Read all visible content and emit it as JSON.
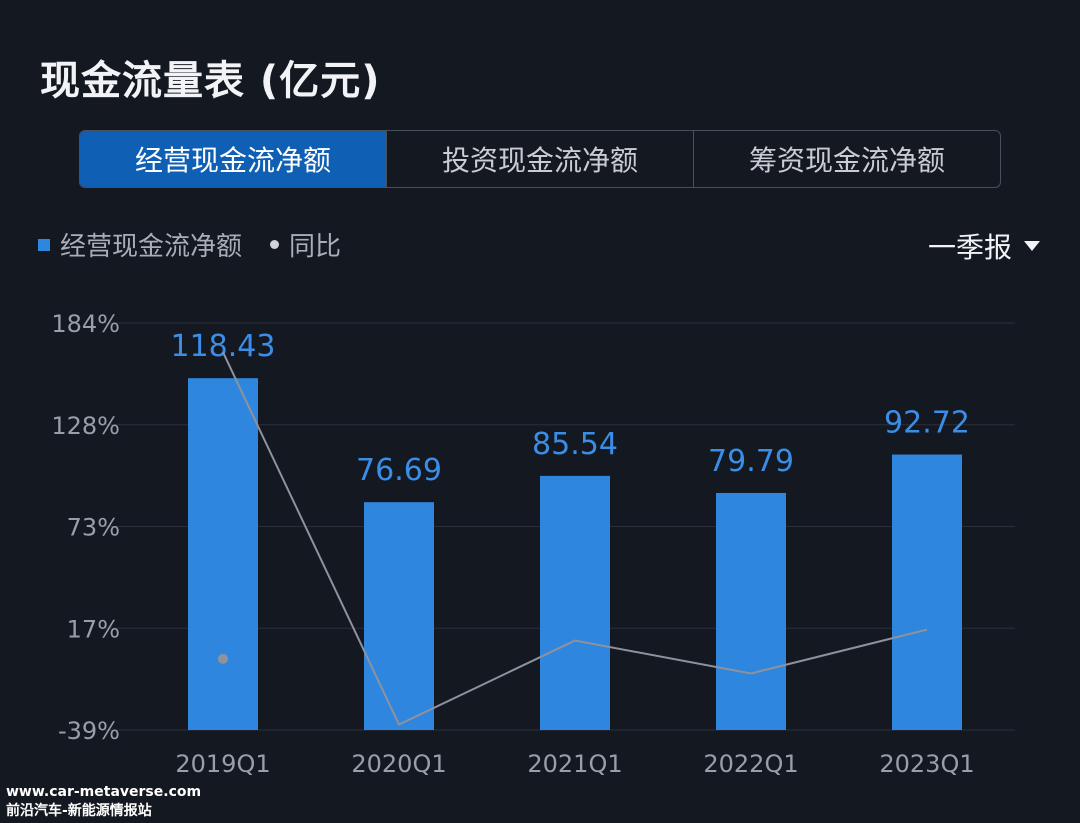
{
  "title": "现金流量表 (亿元)",
  "tabs": [
    {
      "label": "经营现金流净额",
      "active": true
    },
    {
      "label": "投资现金流净额",
      "active": false
    },
    {
      "label": "筹资现金流净额",
      "active": false
    }
  ],
  "legend": {
    "bar_label": "经营现金流净额",
    "line_label": "同比"
  },
  "period": {
    "label": "一季报"
  },
  "colors": {
    "bar": "#2f86de",
    "bar_label": "#3a8ee6",
    "line": "#8e929c",
    "grid": "#2a2f3b",
    "tick": "#9a9ea8"
  },
  "chart_data": {
    "type": "bar",
    "categories": [
      "2019Q1",
      "2020Q1",
      "2021Q1",
      "2022Q1",
      "2023Q1"
    ],
    "series": [
      {
        "name": "经营现金流净额",
        "type": "bar",
        "axis": "left",
        "values": [
          118.43,
          76.69,
          85.54,
          79.79,
          92.72
        ],
        "labels": [
          "118.43",
          "76.69",
          "85.54",
          "79.79",
          "92.72"
        ]
      },
      {
        "name": "同比",
        "type": "line",
        "axis": "right",
        "values": [
          168,
          -36,
          10,
          -8,
          16
        ]
      }
    ],
    "yticks": [
      "184%",
      "128%",
      "73%",
      "17%",
      "-39%"
    ],
    "ylim_pct": [
      -39,
      184
    ],
    "bar_axis_range": [
      0,
      137
    ],
    "isolated_marker": {
      "category": "2019Q1",
      "value": 0
    }
  },
  "watermark": {
    "line1": "www.car-metaverse.com",
    "line2": "前沿汽车-新能源情报站"
  }
}
